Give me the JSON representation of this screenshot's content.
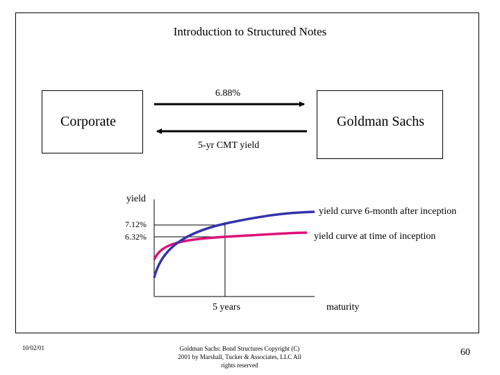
{
  "slide": {
    "title": "Introduction to Structured Notes",
    "left_party": "Corporate",
    "right_party": "Goldman Sachs",
    "fixed_rate_label": "6.88%",
    "floating_rate_label": "5-yr CMT yield"
  },
  "graph": {
    "y_axis_label": "yield",
    "rate_high_label": "7.12%",
    "rate_low_label": "6.32%",
    "x_mark_label": "5 years",
    "x_axis_label": "maturity",
    "curve_after_label": "yield curve 6-month after inception",
    "curve_inception_label": "yield curve at time of inception",
    "curve_after_color": "#3333aa",
    "curve_inception_color": "#dd1177"
  },
  "footer": {
    "date": "10/02/01",
    "copyright": "Goldman Sachs: Bond Structures Copyright (C) 2001 by Marshall, Tucker & Associates, LLC All rights reserved",
    "page_number": "60"
  }
}
